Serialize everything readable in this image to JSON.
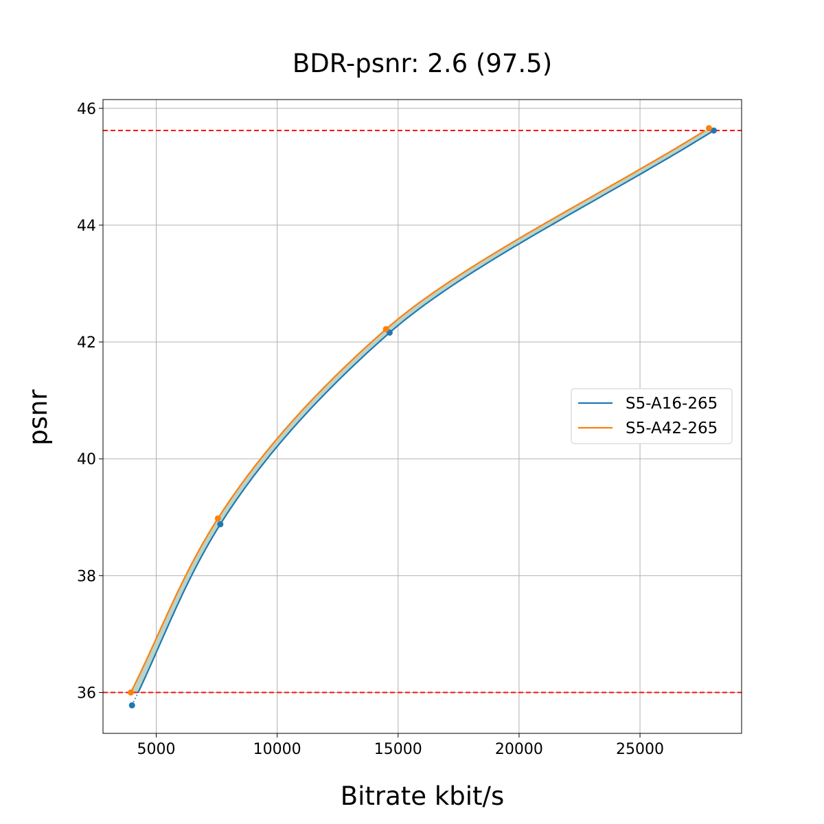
{
  "chart_data": {
    "type": "line",
    "title": "BDR-psnr: 2.6 (97.5)",
    "xlabel": "Bitrate kbit/s",
    "ylabel": "psnr",
    "xlim": [
      2800,
      29200
    ],
    "ylim": [
      35.3,
      46.15
    ],
    "xticks": [
      5000,
      10000,
      15000,
      20000,
      25000
    ],
    "yticks": [
      36,
      38,
      40,
      42,
      44,
      46
    ],
    "grid": true,
    "legend_position": "center-right",
    "reference_lines": [
      {
        "y": 45.62,
        "color": "#ff0000",
        "style": "dashed"
      },
      {
        "y": 36.0,
        "color": "#ff0000",
        "style": "dashed"
      }
    ],
    "fill_between_color": "#b8d4c8",
    "series": [
      {
        "name": "S5-A16-265",
        "color": "#1f77b4",
        "points": [
          [
            4000,
            35.78
          ],
          [
            7650,
            38.88
          ],
          [
            14650,
            42.16
          ],
          [
            28050,
            45.62
          ]
        ]
      },
      {
        "name": "S5-A42-265",
        "color": "#ff7f0e",
        "points": [
          [
            3950,
            36.0
          ],
          [
            7550,
            38.98
          ],
          [
            14500,
            42.22
          ],
          [
            27850,
            45.66
          ]
        ]
      }
    ]
  }
}
